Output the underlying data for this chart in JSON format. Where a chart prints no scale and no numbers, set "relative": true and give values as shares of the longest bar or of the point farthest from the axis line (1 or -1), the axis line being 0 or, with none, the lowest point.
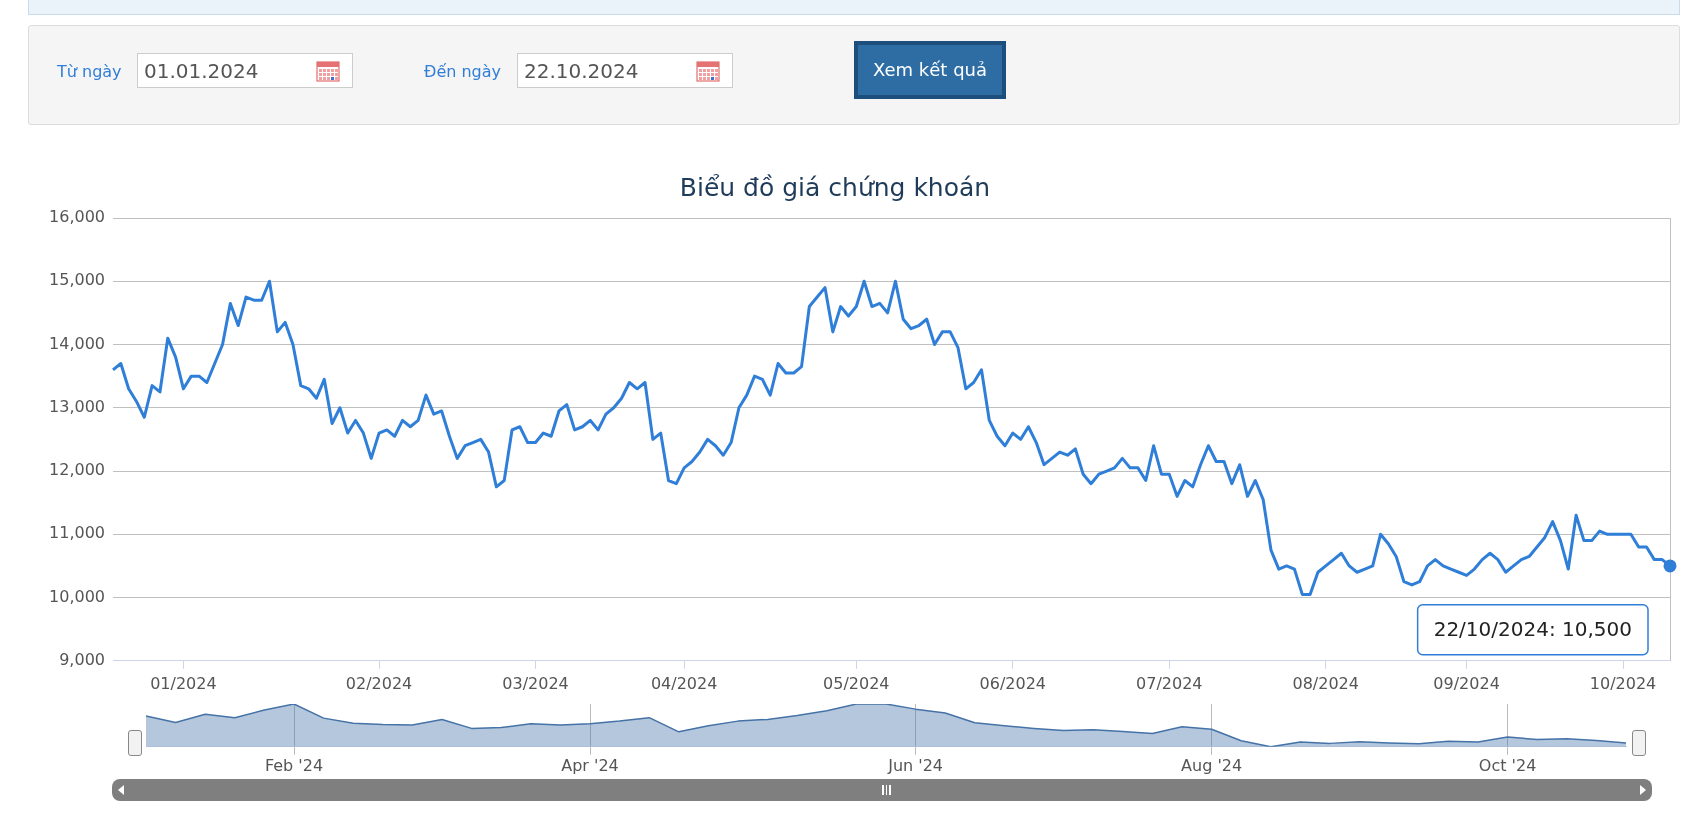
{
  "chart_data": [
    {
      "type": "other",
      "annotations": [
        "Từ ngày",
        "01.01.2024",
        "Đến ngày",
        "22.10.2024",
        "Xem kết quả"
      ]
    },
    {
      "type": "line",
      "title": "Biểu đồ giá chứng khoán",
      "grid": "y",
      "marker": "none",
      "ylim": [
        9000,
        16000
      ],
      "yticks": [
        {
          "value": 9000,
          "label": "9,000"
        },
        {
          "value": 10000,
          "label": "10,000"
        },
        {
          "value": 11000,
          "label": "11,000"
        },
        {
          "value": 12000,
          "label": "12,000"
        },
        {
          "value": 13000,
          "label": "13,000"
        },
        {
          "value": 14000,
          "label": "14,000"
        },
        {
          "value": 15000,
          "label": "15,000"
        },
        {
          "value": 16000,
          "label": "16,000"
        }
      ],
      "categories": [
        null,
        null,
        null,
        null,
        null,
        null,
        null,
        null,
        null,
        "01/2024",
        null,
        null,
        null,
        null,
        null,
        null,
        null,
        null,
        null,
        null,
        null,
        null,
        null,
        null,
        null,
        null,
        null,
        null,
        null,
        null,
        null,
        null,
        null,
        null,
        "02/2024",
        null,
        null,
        null,
        null,
        null,
        null,
        null,
        null,
        null,
        null,
        null,
        null,
        null,
        null,
        null,
        null,
        null,
        null,
        null,
        "03/2024",
        null,
        null,
        null,
        null,
        null,
        null,
        null,
        null,
        null,
        null,
        null,
        null,
        null,
        null,
        null,
        null,
        null,
        null,
        "04/2024",
        null,
        null,
        null,
        null,
        null,
        null,
        null,
        null,
        null,
        null,
        null,
        null,
        null,
        null,
        null,
        null,
        null,
        null,
        null,
        null,
        null,
        "05/2024",
        null,
        null,
        null,
        null,
        null,
        null,
        null,
        null,
        null,
        null,
        null,
        null,
        null,
        null,
        null,
        null,
        null,
        null,
        null,
        "06/2024",
        null,
        null,
        null,
        null,
        null,
        null,
        null,
        null,
        null,
        null,
        null,
        null,
        null,
        null,
        null,
        null,
        null,
        null,
        null,
        "07/2024",
        null,
        null,
        null,
        null,
        null,
        null,
        null,
        null,
        null,
        null,
        null,
        null,
        null,
        null,
        null,
        null,
        null,
        null,
        null,
        "08/2024",
        null,
        null,
        null,
        null,
        null,
        null,
        null,
        null,
        null,
        null,
        null,
        null,
        null,
        null,
        null,
        null,
        null,
        "09/2024",
        null,
        null,
        null,
        null,
        null,
        null,
        null,
        null,
        null,
        null,
        null,
        null,
        null,
        null,
        null,
        null,
        null,
        null,
        null,
        "10/2024",
        null,
        null,
        null,
        null,
        null,
        null
      ],
      "series": [
        {
          "color": "#2f7ed8",
          "values": [
            13600,
            13700,
            13300,
            13100,
            12850,
            13350,
            13250,
            14100,
            13800,
            13300,
            13500,
            13500,
            13400,
            13700,
            14000,
            14650,
            14300,
            14750,
            14700,
            14700,
            15000,
            14200,
            14350,
            14000,
            13350,
            13300,
            13150,
            13450,
            12750,
            13000,
            12600,
            12800,
            12600,
            12200,
            12600,
            12650,
            12550,
            12800,
            12700,
            12800,
            13200,
            12900,
            12950,
            12550,
            12200,
            12400,
            12450,
            12500,
            12300,
            11750,
            11850,
            12650,
            12700,
            12450,
            12450,
            12600,
            12550,
            12950,
            13050,
            12650,
            12700,
            12800,
            12650,
            12900,
            13000,
            13150,
            13400,
            13300,
            13400,
            12500,
            12600,
            11850,
            11800,
            12050,
            12150,
            12300,
            12500,
            12400,
            12250,
            12450,
            13000,
            13200,
            13500,
            13450,
            13200,
            13700,
            13550,
            13550,
            13650,
            14600,
            14750,
            14900,
            14200,
            14600,
            14450,
            14600,
            15000,
            14600,
            14650,
            14500,
            15000,
            14400,
            14250,
            14300,
            14400,
            14000,
            14200,
            14200,
            13950,
            13300,
            13400,
            13600,
            12800,
            12550,
            12400,
            12600,
            12500,
            12700,
            12450,
            12100,
            12200,
            12300,
            12250,
            12350,
            11950,
            11800,
            11950,
            12000,
            12050,
            12200,
            12050,
            12050,
            11850,
            12400,
            11950,
            11950,
            11600,
            11850,
            11750,
            12100,
            12400,
            12150,
            12150,
            11800,
            12100,
            11600,
            11850,
            11550,
            10750,
            10450,
            10500,
            10450,
            10050,
            10050,
            10400,
            10500,
            10600,
            10700,
            10500,
            10400,
            10450,
            10500,
            11000,
            10850,
            10650,
            10250,
            10200,
            10250,
            10500,
            10600,
            10500,
            10450,
            10400,
            10350,
            10450,
            10600,
            10700,
            10600,
            10400,
            10500,
            10600,
            10650,
            10800,
            10950,
            11200,
            10900,
            10450,
            11300,
            10900,
            10900,
            11050,
            11000,
            11000,
            11000,
            11000,
            10800,
            10800,
            10600,
            10600,
            10500
          ]
        }
      ],
      "annotations": [
        "22/10/2024: 10,500"
      ]
    },
    {
      "type": "area",
      "relative": true,
      "grid": "x",
      "categories": [
        null,
        null,
        null,
        null,
        null,
        "Feb '24",
        null,
        null,
        null,
        null,
        null,
        null,
        null,
        null,
        null,
        "Apr '24",
        null,
        null,
        null,
        null,
        null,
        null,
        null,
        null,
        null,
        null,
        "Jun '24",
        null,
        null,
        null,
        null,
        null,
        null,
        null,
        null,
        null,
        "Aug '24",
        null,
        null,
        null,
        null,
        null,
        null,
        null,
        null,
        null,
        "Oct '24",
        null,
        null,
        null,
        null
      ],
      "series": [
        {
          "color": "#4572a7",
          "values": [
            0.72,
            0.57,
            0.76,
            0.68,
            0.86,
            1,
            0.67,
            0.55,
            0.52,
            0.51,
            0.64,
            0.43,
            0.45,
            0.54,
            0.51,
            0.54,
            0.6,
            0.68,
            0.35,
            0.49,
            0.6,
            0.64,
            0.73,
            0.84,
            1,
            1,
            0.88,
            0.79,
            0.56,
            0.49,
            0.43,
            0.38,
            0.4,
            0.36,
            0.31,
            0.47,
            0.41,
            0.14,
            0,
            0.11,
            0.08,
            0.12,
            0.09,
            0.07,
            0.13,
            0.11,
            0.23,
            0.17,
            0.19,
            0.15,
            0.09
          ]
        }
      ]
    }
  ]
}
